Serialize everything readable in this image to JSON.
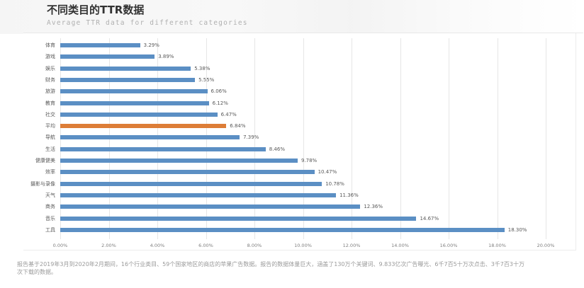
{
  "header": {
    "title": "不同类目的TTR数据",
    "subtitle": "Average TTR data for different categories"
  },
  "footnote": "报告基于2019年3月到2020年2月期间，16个行业类目、59个国家地区的商店的苹果广告数据。报告的数据体量巨大，涵盖了130万个关键词、9.833亿次广告曝光、6千7百5十万次点击、3千7百3十万次下载的数据。",
  "colors": {
    "bar": "#5b8fc4",
    "highlight": "#dd7d37",
    "grid": "#e6e6e6",
    "text": "#595959"
  },
  "chart_data": {
    "type": "bar",
    "orientation": "horizontal",
    "title": "不同类目的TTR数据",
    "subtitle": "Average TTR data for different categories",
    "xlabel": "",
    "ylabel": "",
    "xlim": [
      0,
      20
    ],
    "x_ticks": [
      "0.00%",
      "2.00%",
      "4.00%",
      "6.00%",
      "8.00%",
      "10.00%",
      "12.00%",
      "14.00%",
      "16.00%",
      "18.00%",
      "20.00%"
    ],
    "grid": true,
    "legend": "none",
    "categories": [
      "体育",
      "游戏",
      "娱乐",
      "财务",
      "旅游",
      "教育",
      "社交",
      "平均",
      "导航",
      "生活",
      "健康健美",
      "效率",
      "摄影与录像",
      "天气",
      "商务",
      "音乐",
      "工具"
    ],
    "values": [
      3.29,
      3.89,
      5.38,
      5.55,
      6.06,
      6.12,
      6.47,
      6.84,
      7.39,
      8.46,
      9.78,
      10.47,
      10.78,
      11.36,
      12.36,
      14.67,
      18.3
    ],
    "value_labels": [
      "3.29%",
      "3.89%",
      "5.38%",
      "5.55%",
      "6.06%",
      "6.12%",
      "6.47%",
      "6.84%",
      "7.39%",
      "8.46%",
      "9.78%",
      "10.47%",
      "10.78%",
      "11.36%",
      "12.36%",
      "14.67%",
      "18.30%"
    ],
    "highlighted_category": "平均"
  }
}
